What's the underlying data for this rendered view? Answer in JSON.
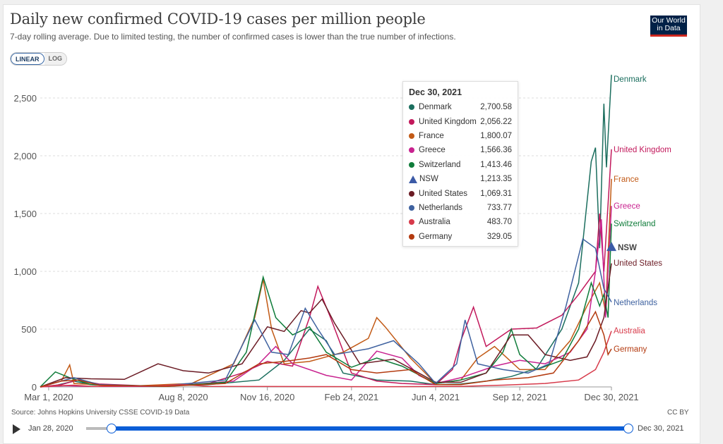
{
  "header": {
    "title": "Daily new confirmed COVID-19 cases per million people",
    "subtitle": "7-day rolling average. Due to limited testing, the number of confirmed cases is lower than the true number of infections.",
    "toggle": {
      "linear": "LINEAR",
      "log": "LOG",
      "active": "linear"
    },
    "logo": {
      "line1": "Our World",
      "line2": "in Data"
    }
  },
  "tooltip": {
    "date": "Dec 30, 2021",
    "rows": [
      {
        "name": "Denmark",
        "value": "2,700.58",
        "color": "#1b6e5e",
        "marker": "dot"
      },
      {
        "name": "United Kingdom",
        "value": "2,056.22",
        "color": "#c2185b",
        "marker": "dot"
      },
      {
        "name": "France",
        "value": "1,800.07",
        "color": "#c25a16",
        "marker": "dot"
      },
      {
        "name": "Greece",
        "value": "1,566.36",
        "color": "#c8228f",
        "marker": "dot"
      },
      {
        "name": "Switzerland",
        "value": "1,413.46",
        "color": "#0f7c3a",
        "marker": "dot"
      },
      {
        "name": "NSW",
        "value": "1,213.35",
        "color": "#3b5aa6",
        "marker": "triangle"
      },
      {
        "name": "United States",
        "value": "1,069.31",
        "color": "#6b1b24",
        "marker": "dot"
      },
      {
        "name": "Netherlands",
        "value": "733.77",
        "color": "#3f62a0",
        "marker": "dot"
      },
      {
        "name": "Australia",
        "value": "483.70",
        "color": "#d73a4a",
        "marker": "dot"
      },
      {
        "name": "Germany",
        "value": "329.05",
        "color": "#b33a0f",
        "marker": "dot"
      }
    ]
  },
  "footer": {
    "source": "Source: Johns Hopkins University CSSE COVID-19 Data",
    "license": "CC BY",
    "timeline_start": "Jan 28, 2020",
    "timeline_end": "Dec 30, 2021",
    "timeline_range_start_fraction": 0.05,
    "timeline_range_end_fraction": 1.0
  },
  "chart_data": {
    "type": "line",
    "title": "Daily new confirmed COVID-19 cases per million people",
    "xlabel": "",
    "ylabel": "",
    "ylim": [
      0,
      2700
    ],
    "xlim": [
      "2020-02-20",
      "2021-12-30"
    ],
    "yticks": [
      0,
      500,
      1000,
      1500,
      2000,
      2500
    ],
    "ytick_labels": [
      "0",
      "500",
      "1,000",
      "1,500",
      "2,000",
      "2,500"
    ],
    "xtick_labels": [
      "Mar 1, 2020",
      "Aug 8, 2020",
      "Nov 16, 2020",
      "Feb 24, 2021",
      "Jun 4, 2021",
      "Sep 12, 2021",
      "Dec 30, 2021"
    ],
    "xtick_days": [
      10,
      170,
      270,
      370,
      470,
      570,
      679
    ],
    "grid": true,
    "legend": "right-end labels",
    "x_unit": "days since 2020-02-20",
    "series": [
      {
        "name": "Denmark",
        "color": "#1b6e5e",
        "points": [
          [
            0,
            0
          ],
          [
            20,
            15
          ],
          [
            40,
            50
          ],
          [
            60,
            20
          ],
          [
            120,
            5
          ],
          [
            200,
            20
          ],
          [
            260,
            60
          ],
          [
            290,
            230
          ],
          [
            320,
            500
          ],
          [
            340,
            400
          ],
          [
            360,
            120
          ],
          [
            400,
            60
          ],
          [
            440,
            50
          ],
          [
            470,
            20
          ],
          [
            500,
            25
          ],
          [
            530,
            50
          ],
          [
            560,
            90
          ],
          [
            590,
            160
          ],
          [
            620,
            500
          ],
          [
            640,
            900
          ],
          [
            655,
            1950
          ],
          [
            660,
            2070
          ],
          [
            665,
            1200
          ],
          [
            670,
            2450
          ],
          [
            673,
            1900
          ],
          [
            679,
            2700
          ]
        ]
      },
      {
        "name": "United Kingdom",
        "color": "#c2185b",
        "points": [
          [
            0,
            0
          ],
          [
            25,
            20
          ],
          [
            45,
            60
          ],
          [
            70,
            25
          ],
          [
            140,
            5
          ],
          [
            200,
            30
          ],
          [
            240,
            120
          ],
          [
            270,
            220
          ],
          [
            300,
            180
          ],
          [
            320,
            600
          ],
          [
            330,
            870
          ],
          [
            345,
            600
          ],
          [
            370,
            120
          ],
          [
            400,
            50
          ],
          [
            430,
            30
          ],
          [
            470,
            20
          ],
          [
            490,
            150
          ],
          [
            500,
            400
          ],
          [
            515,
            690
          ],
          [
            530,
            350
          ],
          [
            560,
            500
          ],
          [
            590,
            510
          ],
          [
            620,
            620
          ],
          [
            640,
            800
          ],
          [
            660,
            1000
          ],
          [
            665,
            1500
          ],
          [
            670,
            1000
          ],
          [
            679,
            2056
          ]
        ]
      },
      {
        "name": "France",
        "color": "#c25a16",
        "points": [
          [
            0,
            0
          ],
          [
            25,
            50
          ],
          [
            35,
            190
          ],
          [
            40,
            30
          ],
          [
            100,
            5
          ],
          [
            180,
            30
          ],
          [
            230,
            200
          ],
          [
            255,
            600
          ],
          [
            265,
            930
          ],
          [
            275,
            500
          ],
          [
            290,
            200
          ],
          [
            320,
            220
          ],
          [
            360,
            300
          ],
          [
            390,
            420
          ],
          [
            400,
            600
          ],
          [
            410,
            520
          ],
          [
            440,
            250
          ],
          [
            470,
            30
          ],
          [
            500,
            60
          ],
          [
            520,
            250
          ],
          [
            540,
            350
          ],
          [
            570,
            150
          ],
          [
            600,
            150
          ],
          [
            630,
            400
          ],
          [
            650,
            700
          ],
          [
            665,
            900
          ],
          [
            672,
            650
          ],
          [
            679,
            1800
          ]
        ]
      },
      {
        "name": "Greece",
        "color": "#c8228f",
        "points": [
          [
            0,
            0
          ],
          [
            30,
            10
          ],
          [
            60,
            5
          ],
          [
            150,
            5
          ],
          [
            230,
            50
          ],
          [
            260,
            200
          ],
          [
            280,
            350
          ],
          [
            300,
            200
          ],
          [
            340,
            100
          ],
          [
            370,
            60
          ],
          [
            400,
            310
          ],
          [
            430,
            250
          ],
          [
            450,
            100
          ],
          [
            470,
            30
          ],
          [
            500,
            80
          ],
          [
            540,
            180
          ],
          [
            570,
            230
          ],
          [
            600,
            200
          ],
          [
            630,
            300
          ],
          [
            650,
            500
          ],
          [
            660,
            1000
          ],
          [
            667,
            1450
          ],
          [
            672,
            600
          ],
          [
            679,
            1566
          ]
        ]
      },
      {
        "name": "Switzerland",
        "color": "#0f7c3a",
        "points": [
          [
            0,
            0
          ],
          [
            18,
            130
          ],
          [
            35,
            80
          ],
          [
            60,
            20
          ],
          [
            150,
            5
          ],
          [
            220,
            40
          ],
          [
            245,
            300
          ],
          [
            265,
            950
          ],
          [
            280,
            600
          ],
          [
            300,
            450
          ],
          [
            320,
            520
          ],
          [
            340,
            300
          ],
          [
            370,
            170
          ],
          [
            400,
            250
          ],
          [
            430,
            180
          ],
          [
            470,
            30
          ],
          [
            500,
            60
          ],
          [
            530,
            120
          ],
          [
            550,
            300
          ],
          [
            560,
            500
          ],
          [
            570,
            280
          ],
          [
            590,
            150
          ],
          [
            620,
            230
          ],
          [
            640,
            500
          ],
          [
            655,
            900
          ],
          [
            665,
            700
          ],
          [
            670,
            800
          ],
          [
            675,
            600
          ],
          [
            679,
            1413
          ]
        ]
      },
      {
        "name": "United States",
        "color": "#6b1b24",
        "points": [
          [
            0,
            0
          ],
          [
            30,
            80
          ],
          [
            60,
            70
          ],
          [
            100,
            65
          ],
          [
            140,
            200
          ],
          [
            170,
            140
          ],
          [
            200,
            120
          ],
          [
            240,
            200
          ],
          [
            270,
            520
          ],
          [
            290,
            480
          ],
          [
            310,
            660
          ],
          [
            320,
            640
          ],
          [
            335,
            760
          ],
          [
            350,
            550
          ],
          [
            380,
            200
          ],
          [
            420,
            240
          ],
          [
            450,
            120
          ],
          [
            470,
            40
          ],
          [
            500,
            40
          ],
          [
            530,
            120
          ],
          [
            560,
            450
          ],
          [
            580,
            450
          ],
          [
            600,
            280
          ],
          [
            630,
            230
          ],
          [
            650,
            260
          ],
          [
            660,
            400
          ],
          [
            670,
            600
          ],
          [
            679,
            1069
          ]
        ]
      },
      {
        "name": "Netherlands",
        "color": "#3f62a0",
        "points": [
          [
            0,
            0
          ],
          [
            20,
            40
          ],
          [
            40,
            80
          ],
          [
            70,
            20
          ],
          [
            140,
            5
          ],
          [
            220,
            60
          ],
          [
            255,
            580
          ],
          [
            275,
            300
          ],
          [
            295,
            280
          ],
          [
            315,
            680
          ],
          [
            330,
            500
          ],
          [
            350,
            280
          ],
          [
            390,
            330
          ],
          [
            420,
            400
          ],
          [
            450,
            200
          ],
          [
            470,
            30
          ],
          [
            495,
            200
          ],
          [
            505,
            580
          ],
          [
            520,
            200
          ],
          [
            550,
            150
          ],
          [
            580,
            120
          ],
          [
            605,
            200
          ],
          [
            625,
            700
          ],
          [
            645,
            1280
          ],
          [
            660,
            1200
          ],
          [
            670,
            850
          ],
          [
            679,
            734
          ]
        ]
      },
      {
        "name": "Australia",
        "color": "#d73a4a",
        "points": [
          [
            0,
            0
          ],
          [
            20,
            10
          ],
          [
            40,
            15
          ],
          [
            60,
            5
          ],
          [
            140,
            10
          ],
          [
            170,
            20
          ],
          [
            200,
            5
          ],
          [
            400,
            2
          ],
          [
            500,
            5
          ],
          [
            550,
            15
          ],
          [
            600,
            30
          ],
          [
            640,
            60
          ],
          [
            660,
            150
          ],
          [
            670,
            300
          ],
          [
            679,
            484
          ]
        ]
      },
      {
        "name": "Germany",
        "color": "#b33a0f",
        "points": [
          [
            0,
            0
          ],
          [
            25,
            50
          ],
          [
            45,
            60
          ],
          [
            70,
            15
          ],
          [
            150,
            5
          ],
          [
            220,
            30
          ],
          [
            260,
            200
          ],
          [
            290,
            220
          ],
          [
            320,
            250
          ],
          [
            340,
            280
          ],
          [
            370,
            150
          ],
          [
            400,
            120
          ],
          [
            440,
            150
          ],
          [
            470,
            20
          ],
          [
            500,
            20
          ],
          [
            540,
            60
          ],
          [
            580,
            80
          ],
          [
            610,
            120
          ],
          [
            640,
            400
          ],
          [
            660,
            650
          ],
          [
            670,
            450
          ],
          [
            675,
            280
          ],
          [
            679,
            329
          ]
        ]
      },
      {
        "name": "NSW",
        "color": "#3b5aa6",
        "points": [
          [
            679,
            1213
          ]
        ],
        "marker": "triangle"
      }
    ],
    "end_labels": [
      "Denmark",
      "United Kingdom",
      "France",
      "Greece",
      "Switzerland",
      "NSW",
      "United States",
      "Netherlands",
      "Australia",
      "Germany"
    ]
  }
}
